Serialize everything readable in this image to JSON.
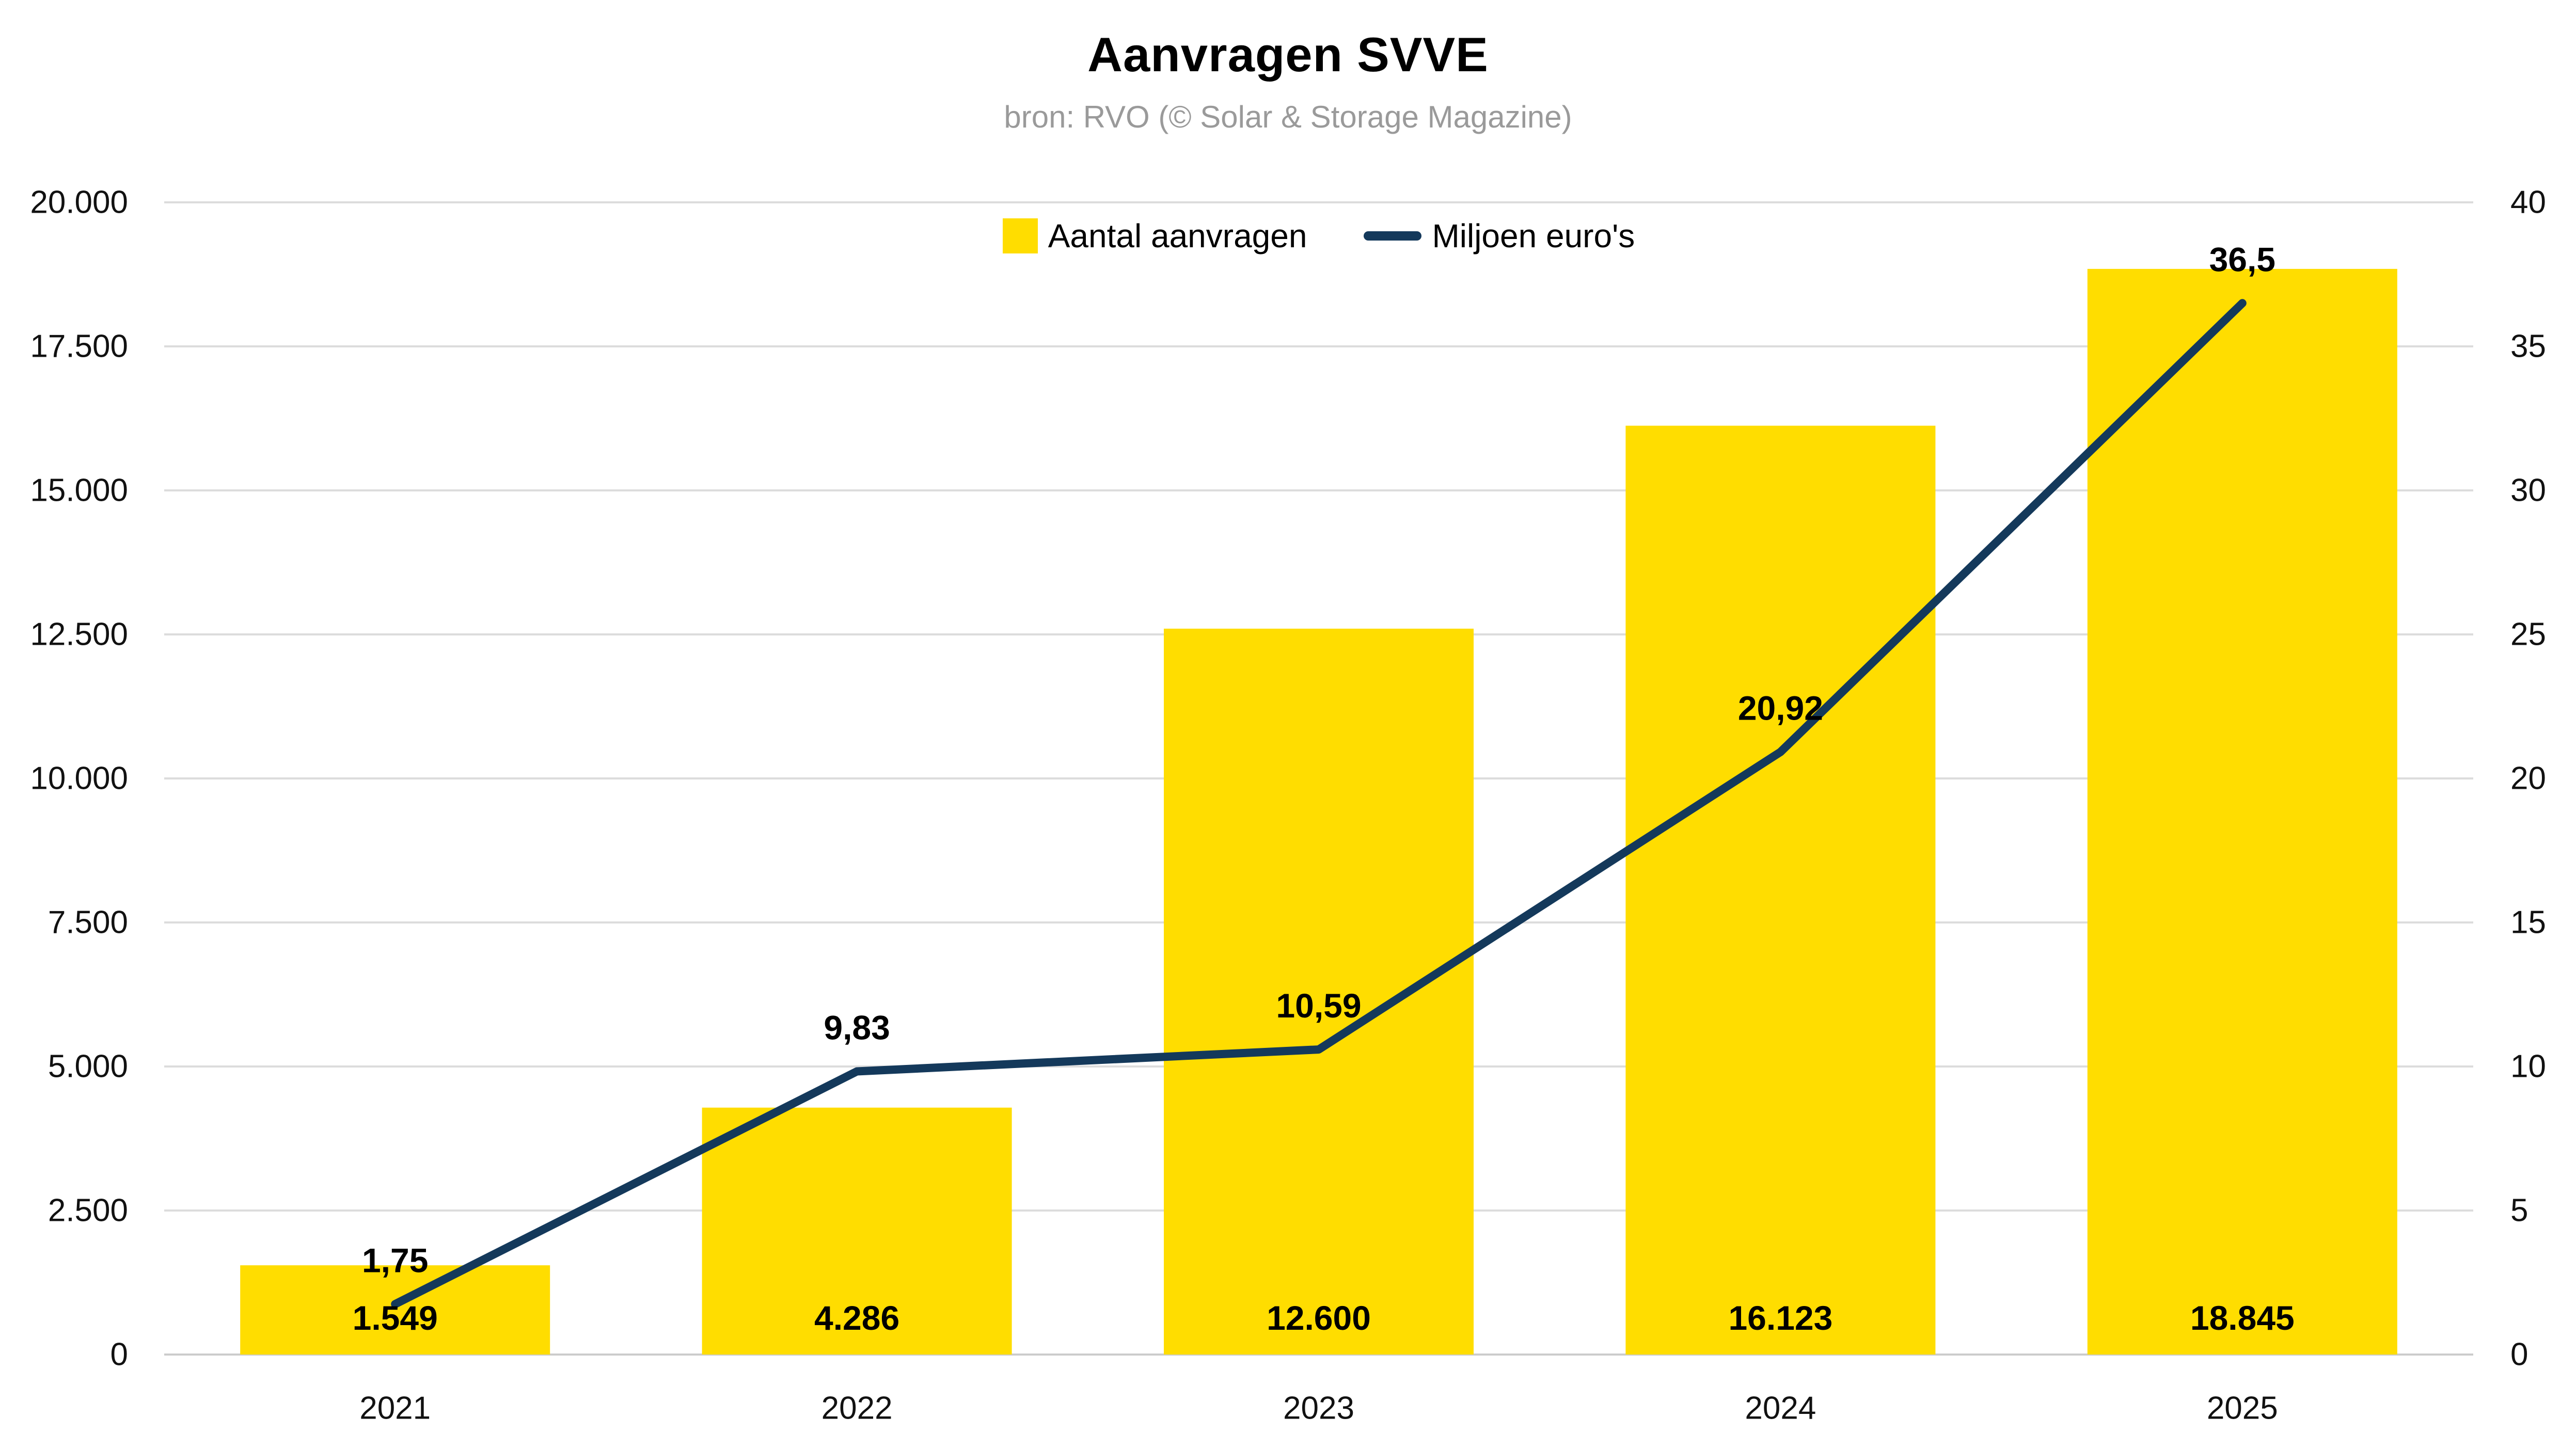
{
  "header": {
    "title": "Aanvragen SVVE",
    "subtitle": "bron: RVO (© Solar & Storage Magazine)"
  },
  "legend": {
    "bar_label": "Aantal aanvragen",
    "line_label": "Miljoen euro's"
  },
  "colors": {
    "bar": "#FFDD00",
    "line": "#14395B",
    "grid": "#DCDCDC",
    "baseline": "#CCCCCC",
    "axis_text": "#111111",
    "subtitle_text": "#9A9A9A"
  },
  "chart_data": {
    "type": "bar",
    "subtype": "combo-bar-line-dual-axis",
    "title": "Aanvragen SVVE",
    "subtitle": "bron: RVO (© Solar & Storage Magazine)",
    "categories": [
      "2021",
      "2022",
      "2023",
      "2024",
      "2025"
    ],
    "series": [
      {
        "name": "Aantal aanvragen",
        "type": "bar",
        "axis": "left",
        "color": "#FFDD00",
        "values": [
          1549,
          4286,
          12600,
          16123,
          18845
        ],
        "labels": [
          "1.549",
          "4.286",
          "12.600",
          "16.123",
          "18.845"
        ]
      },
      {
        "name": "Miljoen euro's",
        "type": "line",
        "axis": "right",
        "color": "#14395B",
        "values": [
          1.75,
          9.83,
          10.59,
          20.92,
          36.5
        ],
        "labels": [
          "1,75",
          "9,83",
          "10,59",
          "20,92",
          "36,5"
        ]
      }
    ],
    "left_axis": {
      "min": 0,
      "max": 20000,
      "step": 2500,
      "tick_labels": [
        "0",
        "2.500",
        "5.000",
        "7.500",
        "10.000",
        "12.500",
        "15.000",
        "17.500",
        "20.000"
      ]
    },
    "right_axis": {
      "min": 0,
      "max": 40,
      "step": 5,
      "tick_labels": [
        "0",
        "5",
        "10",
        "15",
        "20",
        "25",
        "30",
        "35",
        "40"
      ]
    },
    "grid": true,
    "legend_position": "top-center"
  }
}
